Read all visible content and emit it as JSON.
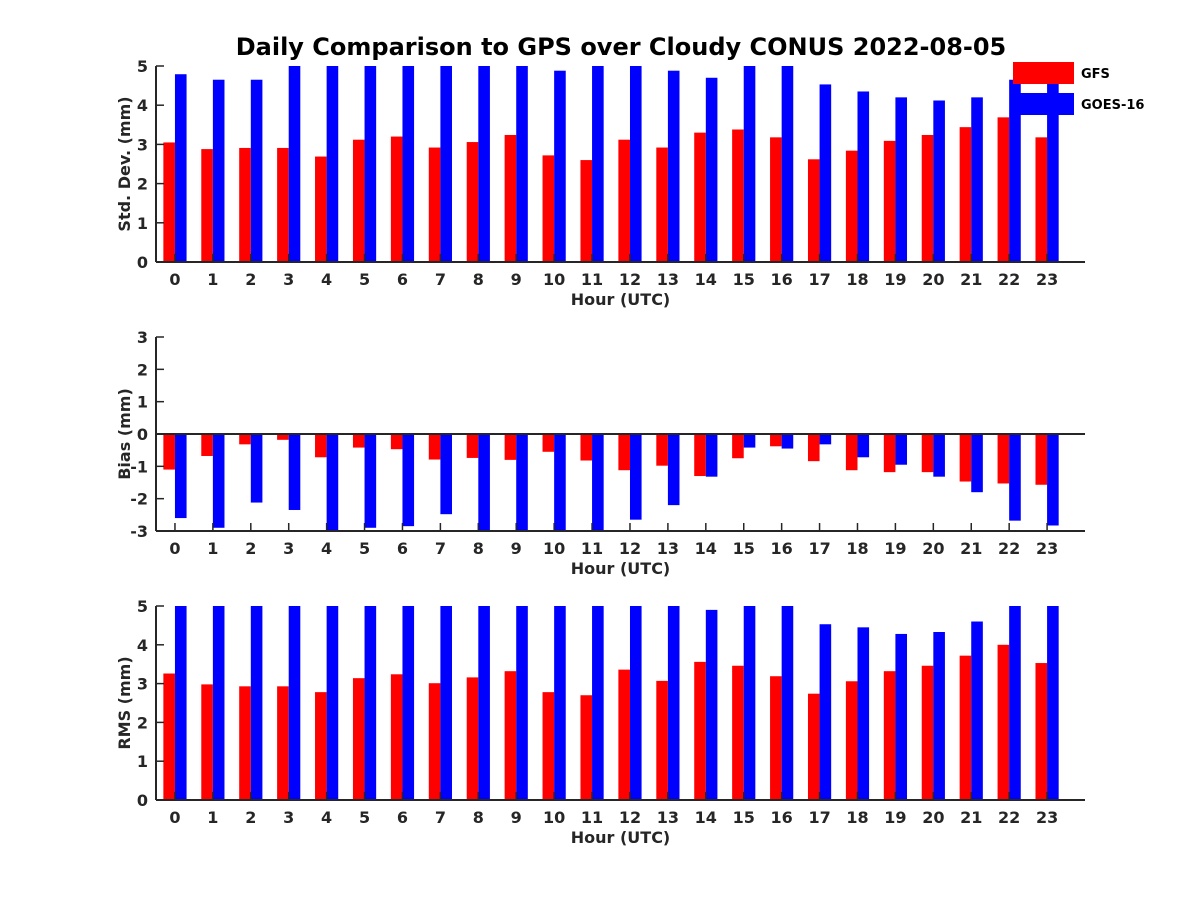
{
  "title": "Daily Comparison to GPS over Cloudy CONUS 2022-08-05",
  "legend": [
    {
      "name": "GFS",
      "color": "#ff0000"
    },
    {
      "name": "GOES-16",
      "color": "#0000ff"
    }
  ],
  "chart_data": [
    {
      "type": "bar",
      "xlabel": "Hour (UTC)",
      "ylabel": "Std. Dev. (mm)",
      "categories": [
        "0",
        "1",
        "2",
        "3",
        "4",
        "5",
        "6",
        "7",
        "8",
        "9",
        "10",
        "11",
        "12",
        "13",
        "14",
        "15",
        "16",
        "17",
        "18",
        "19",
        "20",
        "21",
        "22",
        "23"
      ],
      "ylim": [
        0,
        5
      ],
      "yticks": [
        0,
        1,
        2,
        3,
        4,
        5
      ],
      "series": [
        {
          "name": "GFS",
          "color": "#ff0000",
          "values": [
            3.05,
            2.88,
            2.91,
            2.91,
            2.69,
            3.12,
            3.2,
            2.92,
            3.06,
            3.24,
            2.72,
            2.6,
            3.12,
            2.92,
            3.3,
            3.38,
            3.18,
            2.62,
            2.84,
            3.09,
            3.24,
            3.44,
            3.69,
            3.18
          ]
        },
        {
          "name": "GOES-16",
          "color": "#0000ff",
          "values": [
            4.79,
            4.65,
            4.65,
            5,
            5,
            5,
            5,
            5,
            5,
            5,
            4.88,
            5,
            5,
            4.88,
            4.7,
            5,
            5,
            4.53,
            4.35,
            4.2,
            4.12,
            4.2,
            4.65,
            4.65
          ]
        }
      ]
    },
    {
      "type": "bar",
      "xlabel": "Hour (UTC)",
      "ylabel": "Bias (mm)",
      "categories": [
        "0",
        "1",
        "2",
        "3",
        "4",
        "5",
        "6",
        "7",
        "8",
        "9",
        "10",
        "11",
        "12",
        "13",
        "14",
        "15",
        "16",
        "17",
        "18",
        "19",
        "20",
        "21",
        "22",
        "23"
      ],
      "ylim": [
        -3,
        3
      ],
      "yticks": [
        -3,
        -2,
        -1,
        0,
        1,
        2,
        3
      ],
      "series": [
        {
          "name": "GFS",
          "color": "#ff0000",
          "values": [
            -1.1,
            -0.68,
            -0.32,
            -0.18,
            -0.72,
            -0.42,
            -0.47,
            -0.79,
            -0.74,
            -0.8,
            -0.55,
            -0.82,
            -1.12,
            -0.98,
            -1.3,
            -0.75,
            -0.38,
            -0.84,
            -1.12,
            -1.18,
            -1.18,
            -1.47,
            -1.53,
            -1.57
          ]
        },
        {
          "name": "GOES-16",
          "color": "#0000ff",
          "values": [
            -2.6,
            -2.9,
            -2.12,
            -2.35,
            -3,
            -2.9,
            -2.85,
            -2.48,
            -3,
            -3,
            -3,
            -3,
            -2.65,
            -2.2,
            -1.32,
            -0.42,
            -0.45,
            -0.32,
            -0.72,
            -0.95,
            -1.32,
            -1.8,
            -2.68,
            -2.83
          ]
        }
      ]
    },
    {
      "type": "bar",
      "xlabel": "Hour (UTC)",
      "ylabel": "RMS (mm)",
      "categories": [
        "0",
        "1",
        "2",
        "3",
        "4",
        "5",
        "6",
        "7",
        "8",
        "9",
        "10",
        "11",
        "12",
        "13",
        "14",
        "15",
        "16",
        "17",
        "18",
        "19",
        "20",
        "21",
        "22",
        "23"
      ],
      "ylim": [
        0,
        5
      ],
      "yticks": [
        0,
        1,
        2,
        3,
        4,
        5
      ],
      "series": [
        {
          "name": "GFS",
          "color": "#ff0000",
          "values": [
            3.26,
            2.98,
            2.93,
            2.93,
            2.78,
            3.14,
            3.24,
            3.01,
            3.16,
            3.32,
            2.78,
            2.7,
            3.36,
            3.07,
            3.56,
            3.46,
            3.19,
            2.74,
            3.06,
            3.32,
            3.46,
            3.72,
            4.0,
            3.53
          ]
        },
        {
          "name": "GOES-16",
          "color": "#0000ff",
          "values": [
            5,
            5,
            5,
            5,
            5,
            5,
            5,
            5,
            5,
            5,
            5,
            5,
            5,
            5,
            4.9,
            5,
            5,
            4.53,
            4.45,
            4.28,
            4.33,
            4.6,
            5,
            5
          ]
        }
      ]
    }
  ]
}
